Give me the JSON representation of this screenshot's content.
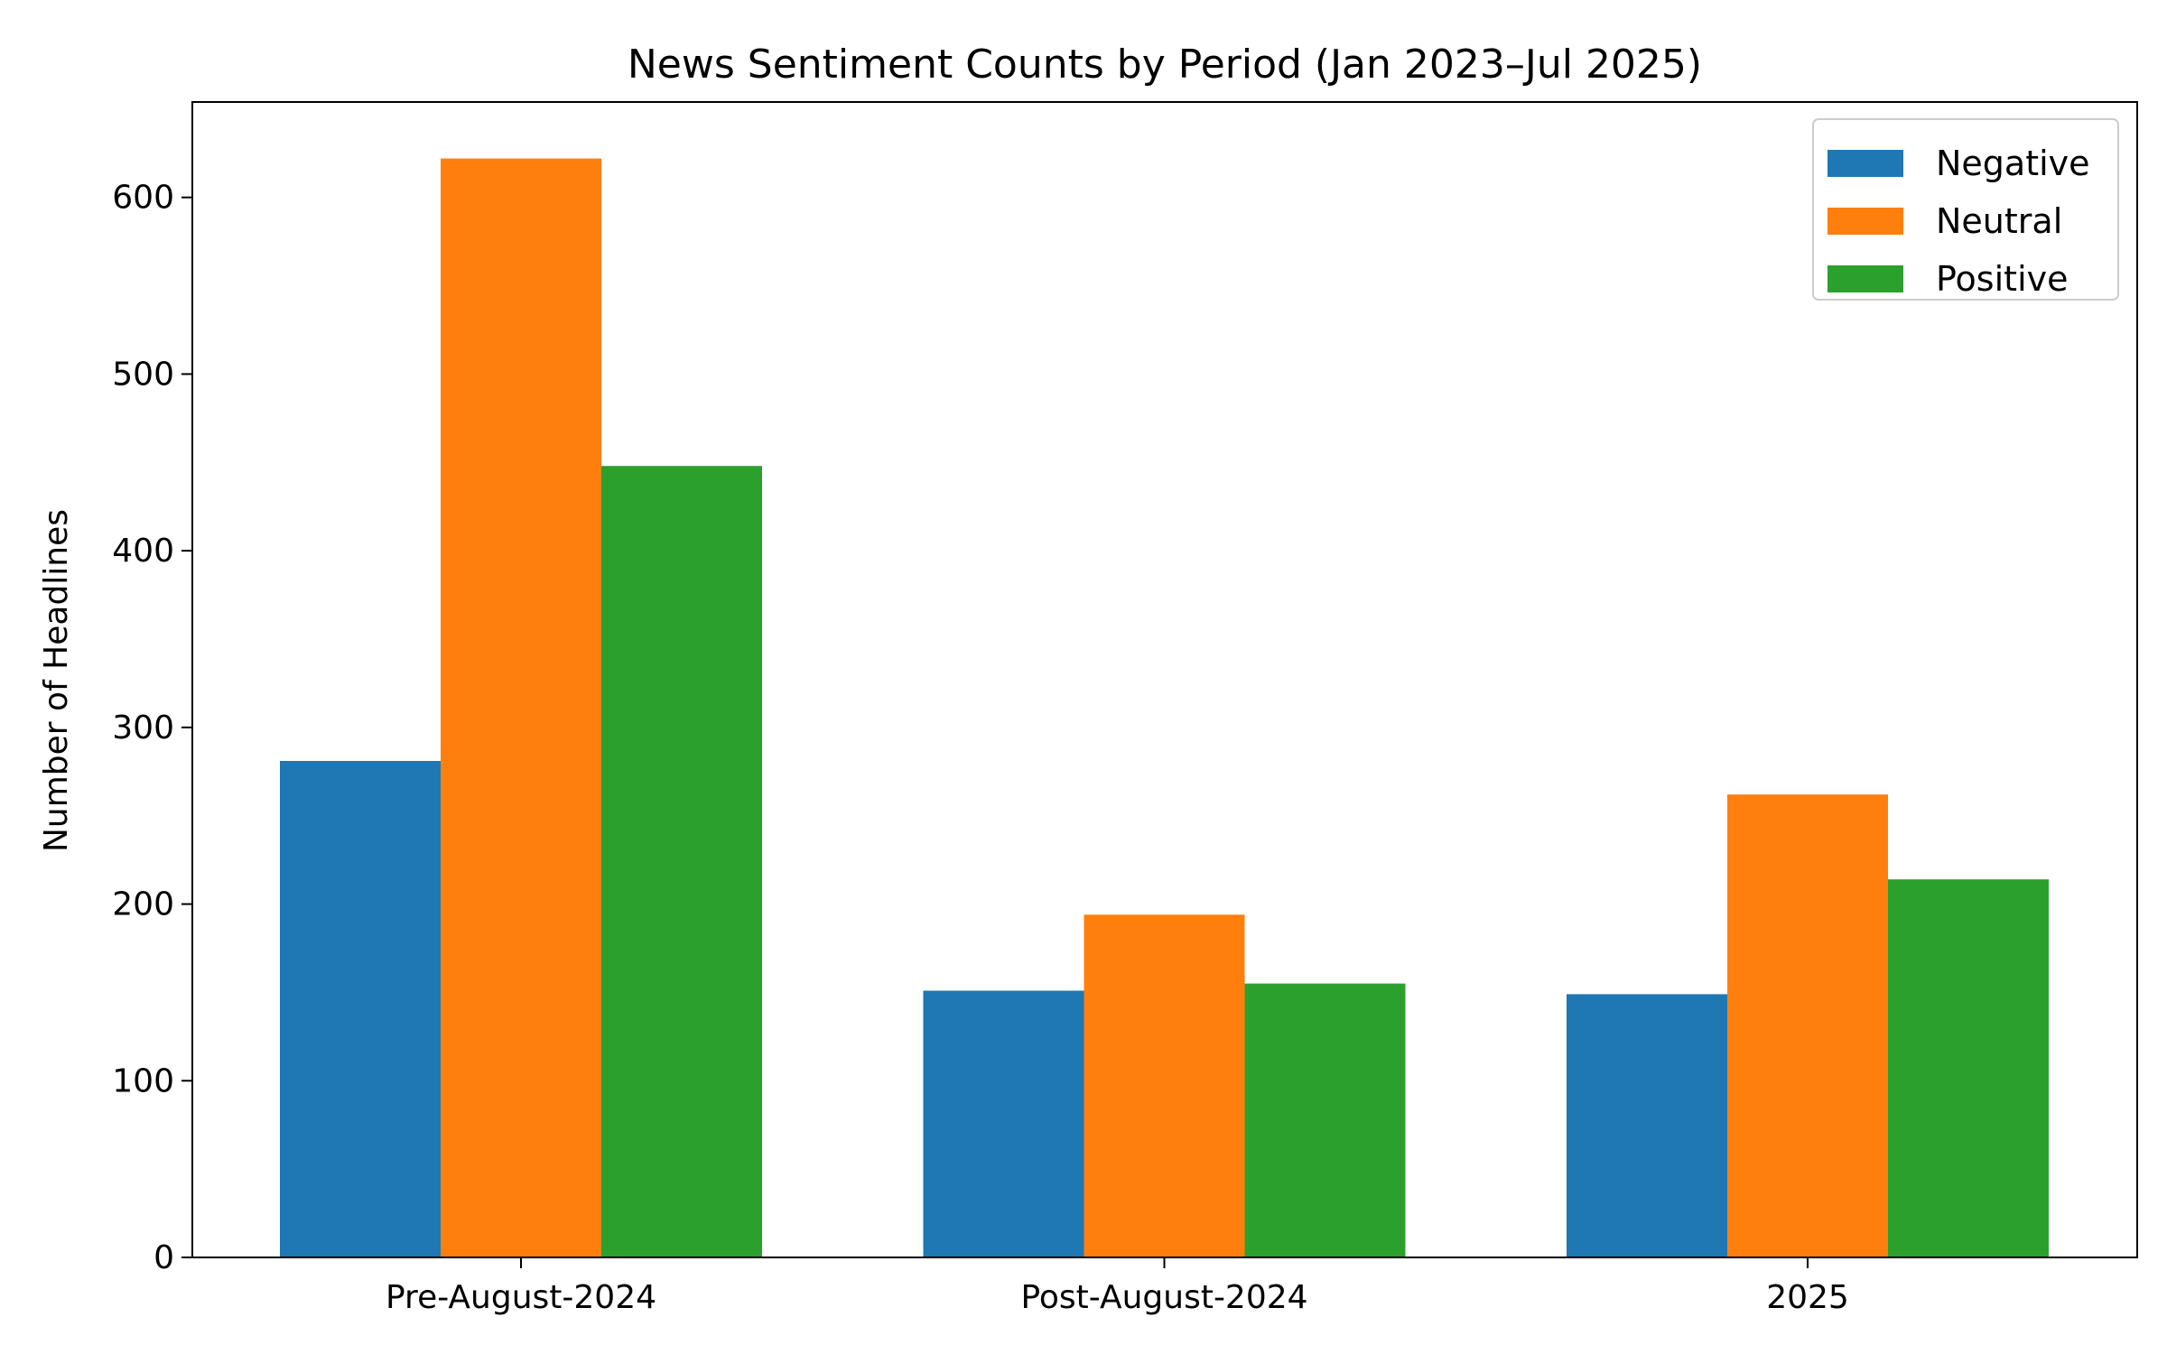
{
  "chart_data": {
    "type": "bar",
    "title": "News Sentiment Counts by Period (Jan 2023–Jul 2025)",
    "xlabel": "",
    "ylabel": "Number of Headlines",
    "categories": [
      "Pre-August-2024",
      "Post-August-2024",
      "2025"
    ],
    "series": [
      {
        "name": "Negative",
        "values": [
          281,
          151,
          149
        ],
        "color": "#1f77b4"
      },
      {
        "name": "Neutral",
        "values": [
          622,
          194,
          262
        ],
        "color": "#ff7f0e"
      },
      {
        "name": "Positive",
        "values": [
          448,
          155,
          214
        ],
        "color": "#2ca02c"
      }
    ],
    "ylim": [
      0,
      654
    ],
    "yticks": [
      0,
      100,
      200,
      300,
      400,
      500,
      600
    ],
    "grid": false,
    "legend_position": "top-right"
  }
}
